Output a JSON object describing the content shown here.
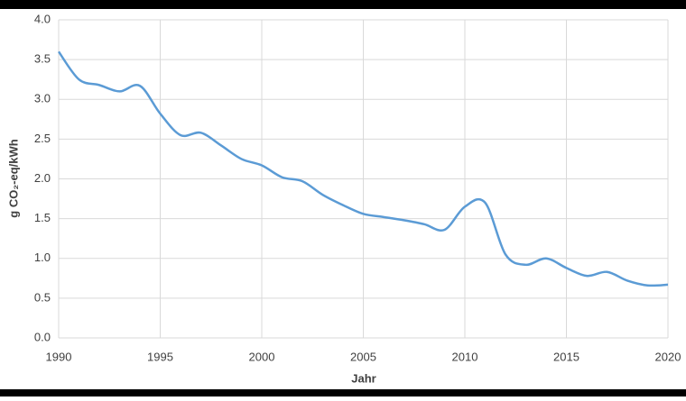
{
  "chart_data": {
    "type": "line",
    "x_label": "Jahr",
    "y_label": "g CO₂-eq/kWh",
    "x": [
      1990,
      1991,
      1992,
      1993,
      1994,
      1995,
      1996,
      1997,
      1998,
      1999,
      2000,
      2001,
      2002,
      2003,
      2004,
      2005,
      2006,
      2007,
      2008,
      2009,
      2010,
      2011,
      2012,
      2013,
      2014,
      2015,
      2016,
      2017,
      2018,
      2019,
      2020
    ],
    "series": [
      {
        "color": "#5b9bd5",
        "values": [
          3.6,
          3.25,
          3.18,
          3.1,
          3.17,
          2.82,
          2.55,
          2.58,
          2.42,
          2.25,
          2.17,
          2.02,
          1.97,
          1.8,
          1.67,
          1.56,
          1.52,
          1.48,
          1.43,
          1.36,
          1.65,
          1.7,
          1.05,
          0.92,
          1.0,
          0.88,
          0.78,
          0.83,
          0.72,
          0.66,
          0.67
        ]
      }
    ],
    "xlim": [
      1990,
      2020
    ],
    "xticks": [
      1990,
      1995,
      2000,
      2005,
      2010,
      2015,
      2020
    ],
    "ylim": [
      0,
      4
    ],
    "yticks": [
      {
        "value": 0,
        "label": "0.0"
      },
      0.5,
      {
        "value": 1,
        "label": "1.0"
      },
      1.5,
      {
        "value": 2,
        "label": "2.0"
      },
      2.5,
      {
        "value": 3,
        "label": "3.0"
      },
      3.5,
      {
        "value": 4,
        "label": "4.0"
      }
    ],
    "grid": true
  }
}
